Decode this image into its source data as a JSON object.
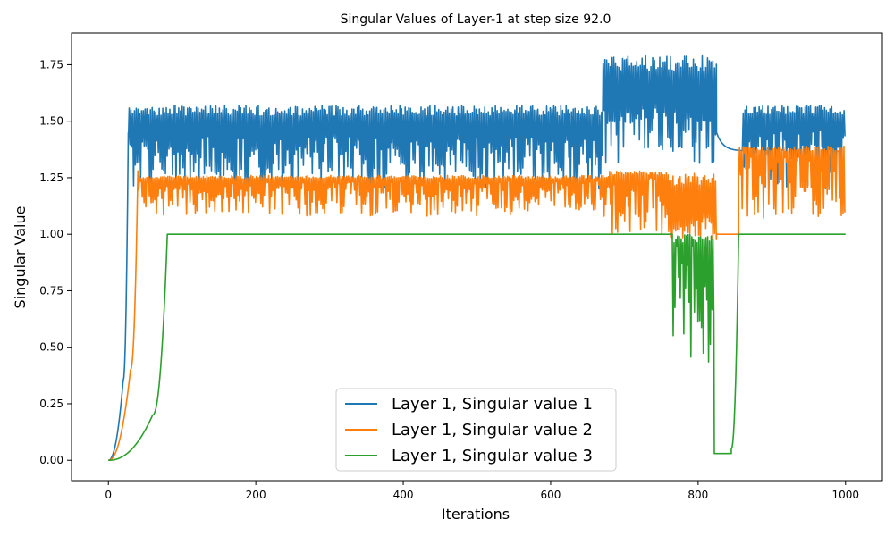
{
  "chart_data": {
    "type": "line",
    "title": "Singular Values of Layer-1 at step size 92.0",
    "xlabel": "Iterations",
    "ylabel": "Singular Value",
    "xlim": [
      -50,
      1050
    ],
    "ylim": [
      -0.09,
      1.89
    ],
    "xticks": [
      0,
      200,
      400,
      600,
      800,
      1000
    ],
    "yticks": [
      0.0,
      0.25,
      0.5,
      0.75,
      1.0,
      1.25,
      1.5,
      1.75
    ],
    "xtick_labels": [
      "0",
      "200",
      "400",
      "600",
      "800",
      "1000"
    ],
    "ytick_labels": [
      "0.00",
      "0.25",
      "0.50",
      "0.75",
      "1.00",
      "1.25",
      "1.50",
      "1.75"
    ],
    "grid": false,
    "legend_position": "bottom-center",
    "series": [
      {
        "name": "Layer 1, Singular value 1",
        "color": "#1f77b4",
        "phases": [
          {
            "range": [
              0,
              20
            ],
            "kind": "rise",
            "from": 0.0,
            "to": 0.35
          },
          {
            "range": [
              20,
              27
            ],
            "kind": "rise",
            "from": 0.35,
            "to": 1.45
          },
          {
            "range": [
              27,
              670
            ],
            "kind": "oscillate",
            "low": 1.2,
            "high": 1.57,
            "mid": 1.38
          },
          {
            "range": [
              670,
              825
            ],
            "kind": "oscillate",
            "low": 1.3,
            "high": 1.79,
            "mid": 1.5
          },
          {
            "range": [
              825,
              860
            ],
            "kind": "decay",
            "from": 1.45,
            "to": 1.37
          },
          {
            "range": [
              860,
              1000
            ],
            "kind": "oscillate",
            "low": 1.2,
            "high": 1.57,
            "mid": 1.4
          }
        ]
      },
      {
        "name": "Layer 1, Singular value 2",
        "color": "#ff7f0e",
        "phases": [
          {
            "range": [
              0,
              30
            ],
            "kind": "rise",
            "from": 0.0,
            "to": 0.4
          },
          {
            "range": [
              30,
              40
            ],
            "kind": "rise",
            "from": 0.4,
            "to": 1.28
          },
          {
            "range": [
              40,
              680
            ],
            "kind": "oscillate",
            "low": 1.08,
            "high": 1.26,
            "mid": 1.2
          },
          {
            "range": [
              680,
              760
            ],
            "kind": "oscillate",
            "low": 1.0,
            "high": 1.28,
            "mid": 1.2
          },
          {
            "range": [
              760,
              825
            ],
            "kind": "oscillate",
            "low": 0.97,
            "high": 1.27,
            "mid": 1.05
          },
          {
            "range": [
              825,
              855
            ],
            "kind": "flat",
            "value": 1.0
          },
          {
            "range": [
              855,
              1000
            ],
            "kind": "oscillate",
            "low": 1.07,
            "high": 1.39,
            "mid": 1.3
          }
        ]
      },
      {
        "name": "Layer 1, Singular value 3",
        "color": "#2ca02c",
        "phases": [
          {
            "range": [
              0,
              60
            ],
            "kind": "rise",
            "from": 0.0,
            "to": 0.2
          },
          {
            "range": [
              60,
              80
            ],
            "kind": "rise",
            "from": 0.2,
            "to": 1.0
          },
          {
            "range": [
              80,
              765
            ],
            "kind": "flat",
            "value": 1.0
          },
          {
            "range": [
              765,
              822
            ],
            "kind": "oscillate",
            "low": 0.42,
            "high": 1.0,
            "mid": 0.85
          },
          {
            "range": [
              822,
              845
            ],
            "kind": "flat",
            "value": 0.03
          },
          {
            "range": [
              845,
              855
            ],
            "kind": "rise",
            "from": 0.05,
            "to": 1.0
          },
          {
            "range": [
              855,
              1000
            ],
            "kind": "flat",
            "value": 1.0
          }
        ]
      }
    ]
  }
}
